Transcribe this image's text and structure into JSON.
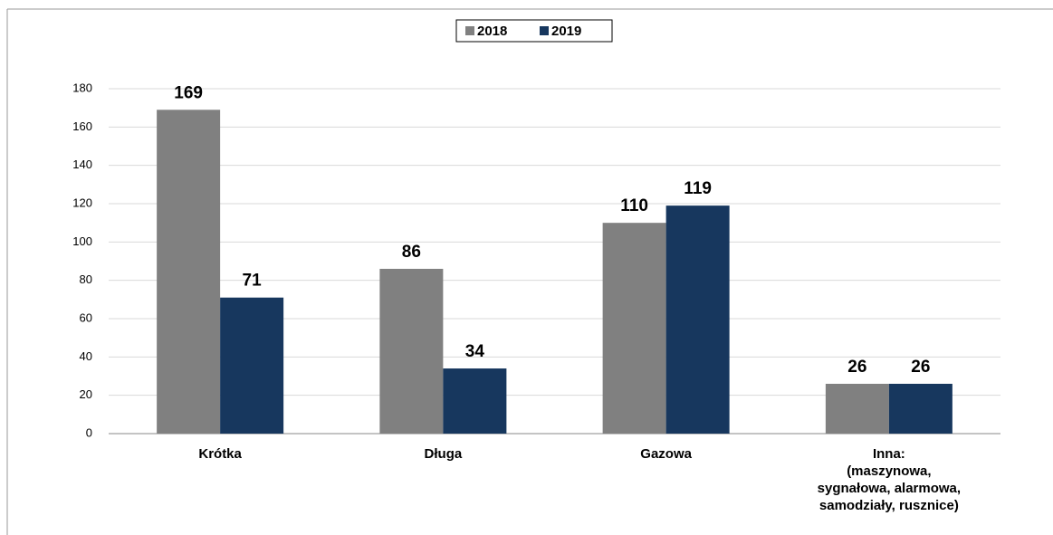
{
  "chart_data": {
    "type": "bar",
    "categories": [
      "Krótka",
      "Długa",
      "Gazowa",
      "Inna:\n(maszynowa,\nsygnałowa, alarmowa,\nsamodziały, rusznice)"
    ],
    "series": [
      {
        "name": "2018",
        "color": "#808080",
        "values": [
          169,
          86,
          110,
          26
        ]
      },
      {
        "name": "2019",
        "color": "#17375e",
        "values": [
          71,
          34,
          119,
          26
        ]
      }
    ],
    "ylim": [
      0,
      180
    ],
    "yticks": [
      0,
      20,
      40,
      60,
      80,
      100,
      120,
      140,
      160,
      180
    ],
    "grid": true,
    "legend": "top"
  }
}
